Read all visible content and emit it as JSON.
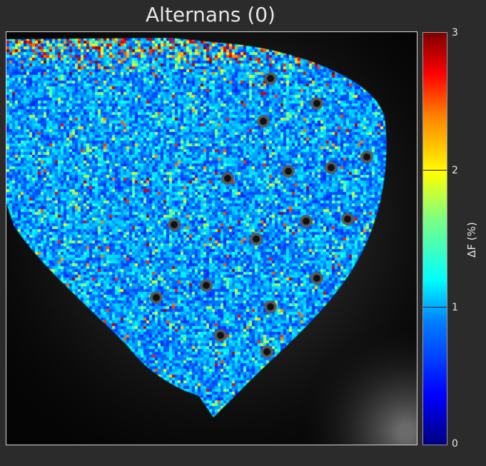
{
  "title": "Alternans (0)",
  "chart_data": {
    "type": "heatmap",
    "title": "Alternans (0)",
    "colorbar": {
      "label": "ΔF (%)",
      "range": [
        0,
        3
      ],
      "ticks": [
        "0",
        "1",
        "2",
        "3"
      ],
      "colormap": "jet"
    },
    "image_content": "optical-mapping heat map of a heart, mostly blue (~0.5–1.2 %), with scattered cyan/yellow hotspots and red values along the edges",
    "grid": false
  },
  "colors": {
    "background": "#2b2b2b",
    "plot_background": "#050505",
    "text": "#e6e6e6"
  }
}
